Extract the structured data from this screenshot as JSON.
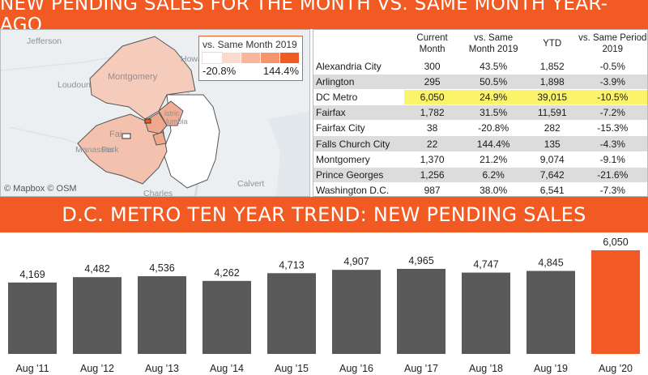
{
  "top_banner": "NEW PENDING SALES FOR THE MONTH VS. SAME MONTH YEAR-AGO",
  "bottom_banner": "D.C. METRO TEN YEAR TREND: NEW PENDING SALES",
  "map": {
    "attribution": "© Mapbox © OSM",
    "labels": [
      "Jefferson",
      "Howard",
      "Loudoun",
      "Montgomery",
      "Fai",
      "Park",
      "Manassas",
      "Calvert",
      "Charles",
      "istric",
      "lumbia"
    ],
    "legend": {
      "title": "vs. Same Month 2019",
      "min_label": "-20.8%",
      "max_label": "144.4%",
      "ramp_colors": [
        "#ffffff",
        "#fbd9cb",
        "#f8b79c",
        "#f5946d",
        "#f15a22"
      ]
    }
  },
  "table": {
    "headers": [
      " ",
      "Current Month",
      "vs. Same Month 2019",
      "YTD",
      "vs. Same Period 2019"
    ],
    "rows": [
      {
        "name": "Alexandria City",
        "current": "300",
        "vs_month": "43.5%",
        "ytd": "1,852",
        "vs_period": "-0.5%"
      },
      {
        "name": "Arlington",
        "current": "295",
        "vs_month": "50.5%",
        "ytd": "1,898",
        "vs_period": "-3.9%"
      },
      {
        "name": "DC Metro",
        "current": "6,050",
        "vs_month": "24.9%",
        "ytd": "39,015",
        "vs_period": "-10.5%"
      },
      {
        "name": "Fairfax",
        "current": "1,782",
        "vs_month": "31.5%",
        "ytd": "11,591",
        "vs_period": "-7.2%"
      },
      {
        "name": "Fairfax City",
        "current": "38",
        "vs_month": "-20.8%",
        "ytd": "282",
        "vs_period": "-15.3%"
      },
      {
        "name": "Falls Church City",
        "current": "22",
        "vs_month": "144.4%",
        "ytd": "135",
        "vs_period": "-4.3%"
      },
      {
        "name": "Montgomery",
        "current": "1,370",
        "vs_month": "21.2%",
        "ytd": "9,074",
        "vs_period": "-9.1%"
      },
      {
        "name": "Prince Georges",
        "current": "1,256",
        "vs_month": "6.2%",
        "ytd": "7,642",
        "vs_period": "-21.6%"
      },
      {
        "name": "Washington D.C.",
        "current": "987",
        "vs_month": "38.0%",
        "ytd": "6,541",
        "vs_period": "-7.3%"
      }
    ],
    "highlight_row": "DC Metro",
    "highlight_color": "#fbf46b"
  },
  "colors": {
    "accent": "#f15a22",
    "bar_gray": "#595959"
  },
  "chart_data": {
    "type": "bar",
    "categories": [
      "Aug '11",
      "Aug '12",
      "Aug '13",
      "Aug '14",
      "Aug '15",
      "Aug '16",
      "Aug '17",
      "Aug '18",
      "Aug '19",
      "Aug '20"
    ],
    "values": [
      4169,
      4482,
      4536,
      4262,
      4713,
      4907,
      4965,
      4747,
      4845,
      6050
    ],
    "value_labels": [
      "4,169",
      "4,482",
      "4,536",
      "4,262",
      "4,713",
      "4,907",
      "4,965",
      "4,747",
      "4,845",
      "6,050"
    ],
    "highlight_index": 9,
    "ylim": [
      0,
      6050
    ],
    "grid": false,
    "legend": "none"
  }
}
